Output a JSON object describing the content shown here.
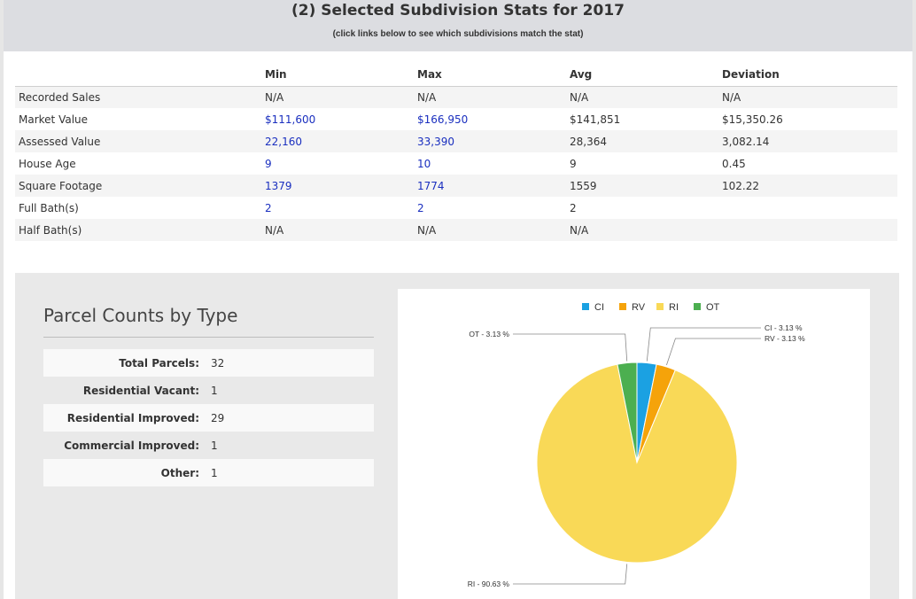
{
  "header": {
    "title": "(2) Selected Subdivision Stats for 2017",
    "subtitle": "(click links below to see which subdivisions match the stat)"
  },
  "stats": {
    "columns": [
      "",
      "Min",
      "Max",
      "Avg",
      "Deviation"
    ],
    "rows": [
      {
        "label": "Recorded Sales",
        "min": "N/A",
        "max": "N/A",
        "avg": "N/A",
        "dev": "N/A",
        "link": false
      },
      {
        "label": "Market Value",
        "min": "$111,600",
        "max": "$166,950",
        "avg": "$141,851",
        "dev": "$15,350.26",
        "link": true
      },
      {
        "label": "Assessed Value",
        "min": "22,160",
        "max": "33,390",
        "avg": "28,364",
        "dev": "3,082.14",
        "link": true
      },
      {
        "label": "House Age",
        "min": "9",
        "max": "10",
        "avg": "9",
        "dev": "0.45",
        "link": true
      },
      {
        "label": "Square Footage",
        "min": "1379",
        "max": "1774",
        "avg": "1559",
        "dev": "102.22",
        "link": true
      },
      {
        "label": "Full Bath(s)",
        "min": "2",
        "max": "2",
        "avg": "2",
        "dev": "",
        "link": true
      },
      {
        "label": "Half Bath(s)",
        "min": "N/A",
        "max": "N/A",
        "avg": "N/A",
        "dev": "",
        "link": false
      }
    ]
  },
  "parcels": {
    "title": "Parcel Counts by Type",
    "rows": [
      {
        "label": "Total Parcels:",
        "value": "32"
      },
      {
        "label": "Residential Vacant:",
        "value": "1"
      },
      {
        "label": "Residential Improved:",
        "value": "29"
      },
      {
        "label": "Commercial Improved:",
        "value": "1"
      },
      {
        "label": "Other:",
        "value": "1"
      }
    ]
  },
  "chart_data": {
    "type": "pie",
    "legend_position": "top-center",
    "series": [
      {
        "name": "CI",
        "value": 3.13,
        "color": "#1ba1e2",
        "label": "CI - 3.13 %"
      },
      {
        "name": "RV",
        "value": 3.13,
        "color": "#f5a30a",
        "label": "RV - 3.13 %"
      },
      {
        "name": "RI",
        "value": 90.63,
        "color": "#f9d957",
        "label": "RI - 90.63 %"
      },
      {
        "name": "OT",
        "value": 3.13,
        "color": "#4caf50",
        "label": "OT - 3.13 %"
      }
    ]
  }
}
